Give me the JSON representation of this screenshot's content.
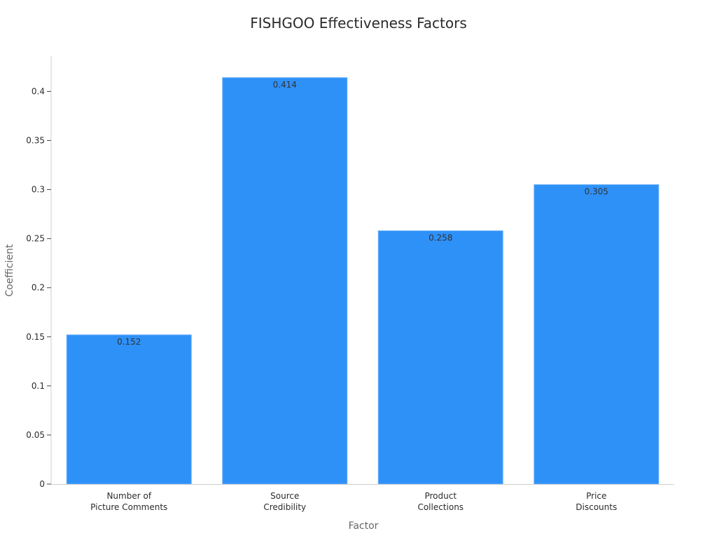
{
  "chart_data": {
    "type": "bar",
    "title": "FISHGOO Effectiveness Factors",
    "xlabel": "Factor",
    "ylabel": "Coefficient",
    "categories": [
      [
        "Number of",
        "Picture Comments"
      ],
      [
        "Source",
        "Credibility"
      ],
      [
        "Product",
        "Collections"
      ],
      [
        "Price",
        "Discounts"
      ]
    ],
    "values": [
      0.152,
      0.414,
      0.258,
      0.305
    ],
    "value_labels": [
      "0.152",
      "0.414",
      "0.258",
      "0.305"
    ],
    "yticks": [
      0,
      0.05,
      0.1,
      0.15,
      0.2,
      0.25,
      0.3,
      0.35,
      0.4
    ],
    "ytick_labels": [
      "0",
      "0.05",
      "0.1",
      "0.15",
      "0.2",
      "0.25",
      "0.3",
      "0.35",
      "0.4"
    ],
    "ylim": [
      0,
      0.436
    ],
    "grid": false,
    "bar_color": "#2e91f8"
  }
}
